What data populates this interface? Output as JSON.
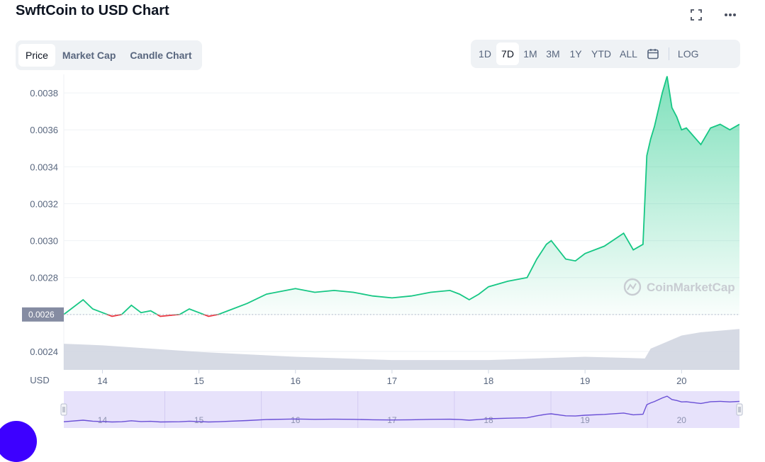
{
  "page": {
    "title": "SwftCoin to USD Chart"
  },
  "header_icons": [
    "expand-icon",
    "more-icon"
  ],
  "tabs": [
    {
      "label": "Price",
      "active": true
    },
    {
      "label": "Market Cap",
      "active": false
    },
    {
      "label": "Candle Chart",
      "active": false
    }
  ],
  "ranges": [
    {
      "label": "1D",
      "active": false
    },
    {
      "label": "7D",
      "active": true
    },
    {
      "label": "1M",
      "active": false
    },
    {
      "label": "3M",
      "active": false
    },
    {
      "label": "1Y",
      "active": false
    },
    {
      "label": "YTD",
      "active": false
    },
    {
      "label": "ALL",
      "active": false
    }
  ],
  "log_label": "LOG",
  "watermark": "CoinMarketCap",
  "colors": {
    "up": "#16c784",
    "down": "#ea3943",
    "volume": "#cfd3df",
    "navigator": "#6a4fd6",
    "current_price_bg": "#858ca2"
  },
  "chart_data": {
    "type": "line",
    "ylabel": "USD",
    "ylim": [
      0.0023,
      0.0039
    ],
    "yticks": [
      "0.0024",
      "0.0026",
      "0.0028",
      "0.0030",
      "0.0032",
      "0.0034",
      "0.0036",
      "0.0038"
    ],
    "xlim": [
      13.6,
      20.6
    ],
    "xticks": [
      "14",
      "15",
      "16",
      "17",
      "18",
      "19",
      "20"
    ],
    "baseline_price": 0.0026,
    "current_price_label": "0.0026",
    "series": [
      {
        "x": [
          13.6,
          13.8,
          13.9,
          14.0,
          14.1,
          14.2,
          14.3,
          14.4,
          14.5,
          14.6,
          14.8,
          14.9,
          15.0,
          15.1,
          15.2,
          15.3,
          15.5,
          15.7,
          15.9,
          16.0,
          16.2,
          16.4,
          16.6,
          16.8,
          17.0,
          17.2,
          17.4,
          17.6,
          17.7,
          17.8,
          17.9,
          18.0,
          18.2,
          18.4,
          18.5,
          18.6,
          18.65,
          18.8,
          18.9,
          19.0,
          19.2,
          19.4,
          19.5,
          19.6,
          19.64,
          19.68,
          19.72,
          19.8,
          19.85,
          19.9,
          19.95,
          20.0,
          20.05,
          20.1,
          20.2,
          20.3,
          20.4,
          20.5,
          20.6
        ],
        "y": [
          0.0026,
          0.00268,
          0.00263,
          0.00261,
          0.00259,
          0.0026,
          0.00265,
          0.00261,
          0.00262,
          0.00259,
          0.0026,
          0.00263,
          0.00261,
          0.00259,
          0.0026,
          0.00262,
          0.00266,
          0.00271,
          0.00273,
          0.00274,
          0.00272,
          0.00273,
          0.00272,
          0.0027,
          0.00269,
          0.0027,
          0.00272,
          0.00273,
          0.00271,
          0.00268,
          0.00271,
          0.00275,
          0.00278,
          0.0028,
          0.0029,
          0.00298,
          0.003,
          0.0029,
          0.00289,
          0.00293,
          0.00297,
          0.00304,
          0.00295,
          0.00298,
          0.00346,
          0.00355,
          0.00362,
          0.0038,
          0.00389,
          0.00372,
          0.00367,
          0.0036,
          0.00361,
          0.00358,
          0.00352,
          0.00361,
          0.00363,
          0.0036,
          0.00363
        ]
      }
    ],
    "volume": {
      "x": [
        13.6,
        14.0,
        15.0,
        16.0,
        17.0,
        18.0,
        19.0,
        19.62,
        19.68,
        19.8,
        20.0,
        20.2,
        20.4,
        20.6
      ],
      "y": [
        0.0246,
        0.0245,
        0.0241,
        0.0238,
        0.0236,
        0.0236,
        0.0238,
        0.0237,
        0.0243,
        0.0246,
        0.0251,
        0.0253,
        0.0254,
        0.0255
      ]
    }
  }
}
